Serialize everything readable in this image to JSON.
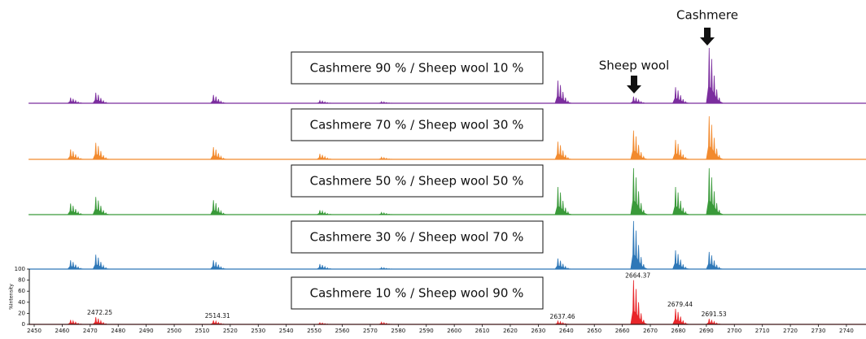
{
  "chart_data": {
    "type": "spectrum",
    "x": [
      2463,
      2472,
      2514,
      2552,
      2574,
      2637,
      2664,
      2679,
      2691
    ],
    "series": [
      {
        "name": "Cashmere 90 % / Sheep wool 10 %",
        "color": "#7b2d9e",
        "values": [
          10,
          19,
          15,
          5,
          3,
          41,
          12,
          29,
          100
        ]
      },
      {
        "name": "Cashmere 70 % / Sheep wool 30 %",
        "color": "#f28a2e",
        "values": [
          18,
          30,
          22,
          10,
          4,
          32,
          52,
          35,
          78
        ]
      },
      {
        "name": "Cashmere 50 % / Sheep wool 50 %",
        "color": "#3a9a3a",
        "values": [
          20,
          32,
          26,
          8,
          4,
          50,
          84,
          50,
          84
        ]
      },
      {
        "name": "Cashmere 30 % / Sheep wool 70 %",
        "color": "#2f78b8",
        "values": [
          16,
          26,
          16,
          9,
          3,
          19,
          87,
          34,
          31
        ]
      },
      {
        "name": "Cashmere 10 % / Sheep wool 90 %",
        "color": "#e8262a",
        "values": [
          8,
          13,
          7,
          3,
          4,
          6,
          80,
          28,
          10
        ]
      }
    ],
    "peak_labels": [
      2472.25,
      2514.31,
      2637.46,
      2664.37,
      2679.44,
      2691.53
    ],
    "annotations": [
      "Cashmere",
      "Sheep wool"
    ],
    "ylabel": "%Intensity",
    "xlim": [
      2448,
      2747
    ],
    "xticks": [
      2450,
      2460,
      2470,
      2480,
      2490,
      2500,
      2510,
      2520,
      2530,
      2540,
      2550,
      2560,
      2570,
      2580,
      2590,
      2600,
      2610,
      2620,
      2630,
      2640,
      2650,
      2660,
      2670,
      2680,
      2690,
      2700,
      2710,
      2720,
      2730,
      2740
    ],
    "ylim": [
      0,
      100
    ],
    "yticks": [
      0,
      20,
      40,
      60,
      80,
      100
    ]
  }
}
